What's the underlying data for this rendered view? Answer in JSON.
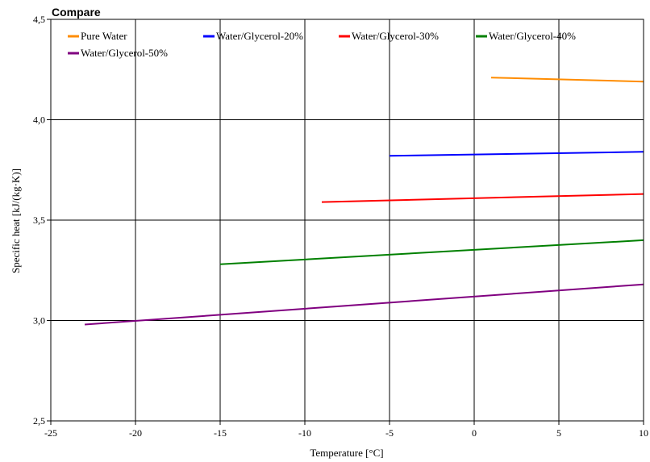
{
  "chart_data": {
    "type": "line",
    "title": "Compare",
    "xlabel": "Temperature [°C]",
    "ylabel": "Specific heat [kJ/(kg·K)]",
    "xlim": [
      -25,
      10
    ],
    "ylim": [
      2.5,
      4.5
    ],
    "x_ticks": [
      -25,
      -20,
      -15,
      -10,
      -5,
      0,
      5,
      10
    ],
    "x_tick_labels": [
      "-25",
      "-20",
      "-15",
      "-10",
      "-5",
      "0",
      "5",
      "10"
    ],
    "y_ticks": [
      2.5,
      3.0,
      3.5,
      4.0,
      4.5
    ],
    "y_tick_labels": [
      "2,5",
      "3,0",
      "3,5",
      "4,0",
      "4,5"
    ],
    "grid": true,
    "legend_position": "top",
    "series": [
      {
        "name": "Pure Water",
        "color": "#ff8c00",
        "x": [
          1,
          10
        ],
        "y": [
          4.21,
          4.19
        ]
      },
      {
        "name": "Water/Glycerol-20%",
        "color": "#0000ff",
        "x": [
          -5,
          10
        ],
        "y": [
          3.82,
          3.84
        ]
      },
      {
        "name": "Water/Glycerol-30%",
        "color": "#ff0000",
        "x": [
          -9,
          10
        ],
        "y": [
          3.59,
          3.63
        ]
      },
      {
        "name": "Water/Glycerol-40%",
        "color": "#008000",
        "x": [
          -15,
          10
        ],
        "y": [
          3.28,
          3.4
        ]
      },
      {
        "name": "Water/Glycerol-50%",
        "color": "#800080",
        "x": [
          -23,
          10
        ],
        "y": [
          2.98,
          3.18
        ]
      }
    ]
  }
}
